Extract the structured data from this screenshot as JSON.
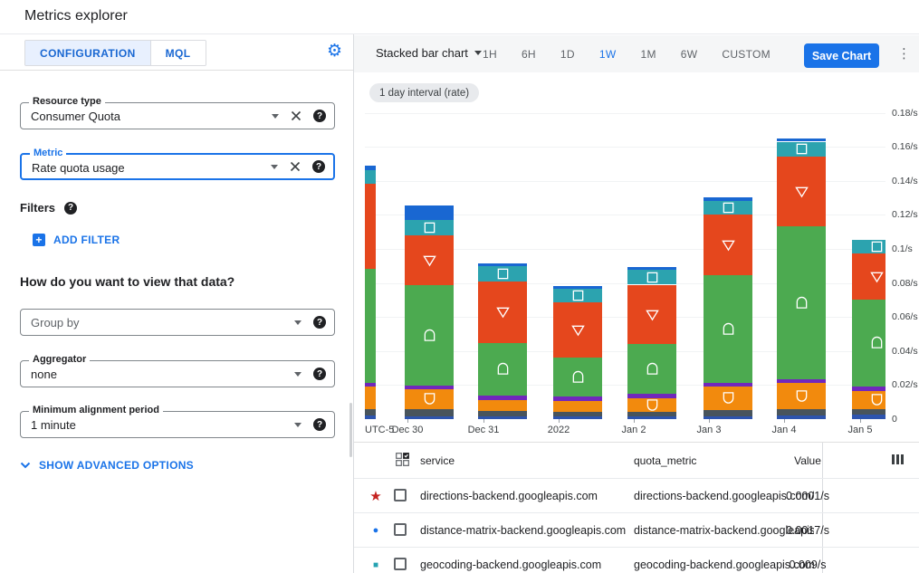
{
  "header": {
    "title": "Metrics explorer"
  },
  "left_panel": {
    "tabs": [
      {
        "label": "CONFIGURATION",
        "active": true
      },
      {
        "label": "MQL",
        "active": false
      }
    ],
    "resource_type": {
      "label": "Resource type",
      "value": "Consumer Quota"
    },
    "metric": {
      "label": "Metric",
      "value": "Rate quota usage"
    },
    "filters_label": "Filters",
    "add_filter_label": "ADD FILTER",
    "view_question": "How do you want to view that data?",
    "group_by": {
      "placeholder": "Group by"
    },
    "aggregator": {
      "label": "Aggregator",
      "value": "none"
    },
    "min_alignment": {
      "label": "Minimum alignment period",
      "value": "1 minute"
    },
    "advanced_label": "SHOW ADVANCED OPTIONS"
  },
  "toolbar": {
    "chart_type": "Stacked bar chart",
    "ranges": [
      "1H",
      "6H",
      "1D",
      "1W",
      "1M",
      "6W",
      "CUSTOM"
    ],
    "active_range": "1W",
    "save_label": "Save Chart"
  },
  "chip": "1 day interval (rate)",
  "chart_data": {
    "type": "bar",
    "stacked": true,
    "unit": "/s",
    "ylim": [
      0,
      0.18
    ],
    "grid": true,
    "tz_label": "UTC-5",
    "first_bar_clipped": true,
    "x_labels": [
      "Dec 30",
      "Dec 31",
      "2022",
      "Jan 2",
      "Jan 3",
      "Jan 4",
      "Jan 5"
    ],
    "y_ticks": [
      {
        "label": "0.18/s",
        "value": 0.18
      },
      {
        "label": "0.16/s",
        "value": 0.16
      },
      {
        "label": "0.14/s",
        "value": 0.14
      },
      {
        "label": "0.12/s",
        "value": 0.12
      },
      {
        "label": "0.1/s",
        "value": 0.1
      },
      {
        "label": "0.08/s",
        "value": 0.08
      },
      {
        "label": "0.06/s",
        "value": 0.06
      },
      {
        "label": "0.04/s",
        "value": 0.04
      },
      {
        "label": "0.02/s",
        "value": 0.02
      },
      {
        "label": "0",
        "value": 0
      }
    ],
    "series": [
      {
        "name": "royal-blue-bottom",
        "color": "#2D54AE",
        "marker": null,
        "values": [
          0.002,
          0.0016,
          0.0016,
          0.0016,
          0.0016,
          0.0016,
          0.0021,
          0.0027
        ]
      },
      {
        "name": "slate-gray",
        "color": "#48545C",
        "marker": null,
        "values": [
          0.004,
          0.0043,
          0.0032,
          0.0027,
          0.0027,
          0.0037,
          0.0037,
          0.0032
        ]
      },
      {
        "name": "orange-shield",
        "color": "#F28A0D",
        "marker": "shield",
        "values": [
          0.013,
          0.0118,
          0.0064,
          0.0064,
          0.008,
          0.014,
          0.0155,
          0.0107
        ]
      },
      {
        "name": "purple",
        "color": "#7127BC",
        "marker": null,
        "values": [
          0.0021,
          0.0021,
          0.0027,
          0.0027,
          0.0027,
          0.0021,
          0.0021,
          0.0027
        ]
      },
      {
        "name": "green-arch",
        "color": "#4CAA50",
        "marker": "arch",
        "values": [
          0.067,
          0.059,
          0.031,
          0.023,
          0.029,
          0.063,
          0.09,
          0.051
        ]
      },
      {
        "name": "red-triangle",
        "color": "#E5471D",
        "marker": "triangle-down",
        "values": [
          0.05,
          0.029,
          0.036,
          0.032,
          0.035,
          0.036,
          0.041,
          0.027
        ]
      },
      {
        "name": "teal-square",
        "color": "#2CA3AF",
        "marker": "square",
        "values": [
          0.008,
          0.009,
          0.009,
          0.008,
          0.0086,
          0.008,
          0.0086,
          0.008
        ]
      },
      {
        "name": "bright-blue-cap",
        "color": "#1967D2",
        "marker": null,
        "values": [
          0.003,
          0.009,
          0.0016,
          0.002,
          0.002,
          0.0021,
          0.0021,
          0
        ]
      }
    ]
  },
  "table": {
    "columns": {
      "service": "service",
      "quota_metric": "quota_metric",
      "value": "Value"
    },
    "rows": [
      {
        "marker": "star",
        "marker_color": "#C5221F",
        "service": "directions-backend.googleapis.com",
        "quota_metric": "directions-backend.googleapis.com/billabl",
        "value": "0.0001/s"
      },
      {
        "marker": "circle",
        "marker_color": "#1A73E8",
        "service": "distance-matrix-backend.googleapis.com",
        "quota_metric": "distance-matrix-backend.googleapis.com/l",
        "value": "0.0017/s"
      },
      {
        "marker": "square",
        "marker_color": "#26A3B2",
        "service": "geocoding-backend.googleapis.com",
        "quota_metric": "geocoding-backend.googleapis.com/billab",
        "value": "0.009/s"
      }
    ]
  }
}
